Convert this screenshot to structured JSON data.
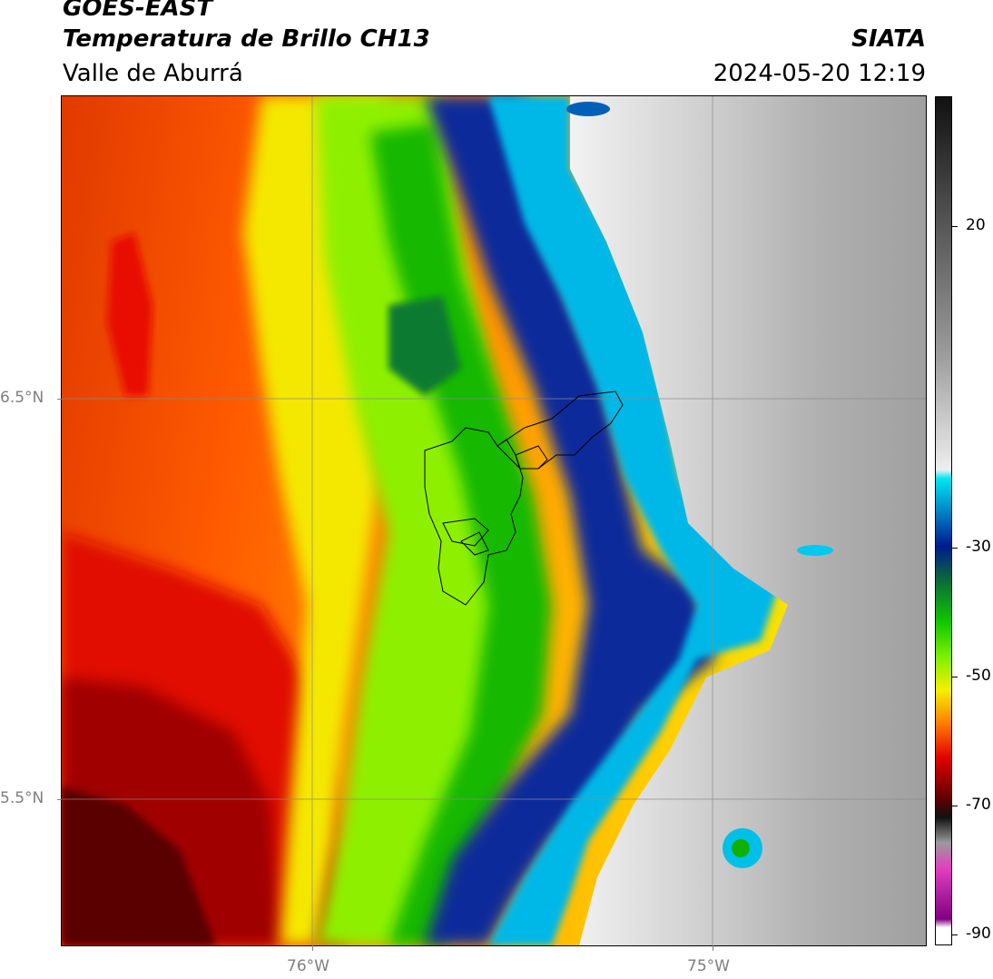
{
  "header": {
    "satellite": "GOES-EAST",
    "product": "Temperatura de Brillo CH13",
    "region": "Valle de Aburrá",
    "organization": "SIATA",
    "datetime": "2024-05-20 12:19"
  },
  "map": {
    "lat_labels": [
      "6.5°N",
      "5.5°N"
    ],
    "lon_labels": [
      "76°W",
      "75°W"
    ],
    "gridlines": true,
    "overlay": "Valle de Aburrá municipality boundaries"
  },
  "colorbar": {
    "ticks": [
      "20",
      "-30",
      "-50",
      "-70",
      "-90"
    ],
    "colors": {
      "gray_top": "#111111",
      "gray_mid": "#9a9a9a",
      "gray_light": "#eeeeee",
      "cyan": "#00e6f0",
      "blue": "#0067b8",
      "navy": "#001a8f",
      "dark_green": "#0a6a3a",
      "green": "#10c800",
      "lime": "#7cf000",
      "yellow": "#f6f000",
      "orange": "#ff7a00",
      "red": "#e00000",
      "dark_red": "#5a0000",
      "magenta": "#e040c0",
      "purple": "#800080"
    }
  }
}
